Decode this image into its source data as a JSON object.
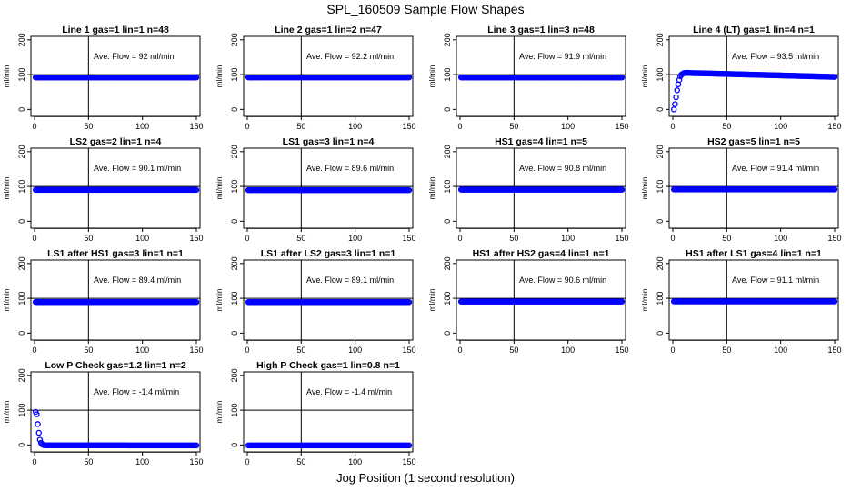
{
  "figure": {
    "title": "SPL_160509  Sample Flow Shapes",
    "xlabel": "Jog Position (1 second resolution)"
  },
  "chart_data": [
    {
      "type": "scatter",
      "title": "Line 1 gas=1 lin=1 n=48",
      "ylabel": "ml/min",
      "annotation": "Ave. Flow =  92  ml/min",
      "xlim": [
        0,
        150
      ],
      "ylim": [
        -20,
        210
      ],
      "xticks": [
        0,
        50,
        100,
        150
      ],
      "yticks": [
        0,
        100,
        200
      ],
      "hlines": [
        100
      ],
      "vlines": [
        50
      ],
      "series": [
        {
          "color": "#0000ff",
          "x": [
            1,
            150
          ],
          "y": [
            92,
            92
          ],
          "shape": "flat"
        }
      ]
    },
    {
      "type": "scatter",
      "title": "Line 2 gas=1 lin=2 n=47",
      "ylabel": "ml/min",
      "annotation": "Ave. Flow =  92.2  ml/min",
      "xlim": [
        0,
        150
      ],
      "ylim": [
        -20,
        210
      ],
      "xticks": [
        0,
        50,
        100,
        150
      ],
      "yticks": [
        0,
        100,
        200
      ],
      "hlines": [
        100
      ],
      "vlines": [
        50
      ],
      "series": [
        {
          "color": "#0000ff",
          "x": [
            1,
            150
          ],
          "y": [
            92.2,
            92.2
          ],
          "shape": "flat"
        }
      ]
    },
    {
      "type": "scatter",
      "title": "Line 3 gas=1 lin=3 n=48",
      "ylabel": "ml/min",
      "annotation": "Ave. Flow =  91.9  ml/min",
      "xlim": [
        0,
        150
      ],
      "ylim": [
        -20,
        210
      ],
      "xticks": [
        0,
        50,
        100,
        150
      ],
      "yticks": [
        0,
        100,
        200
      ],
      "hlines": [
        100
      ],
      "vlines": [
        50
      ],
      "series": [
        {
          "color": "#0000ff",
          "x": [
            1,
            150
          ],
          "y": [
            91.9,
            91.9
          ],
          "shape": "flat"
        }
      ]
    },
    {
      "type": "scatter",
      "title": "Line 4 (LT) gas=1 lin=4 n=1",
      "ylabel": "ml/min",
      "annotation": "Ave. Flow =  93.5  ml/min",
      "xlim": [
        0,
        150
      ],
      "ylim": [
        -20,
        210
      ],
      "xticks": [
        0,
        50,
        100,
        150
      ],
      "yticks": [
        0,
        100,
        200
      ],
      "hlines": [
        100
      ],
      "vlines": [
        50
      ],
      "series": [
        {
          "color": "#0000ff",
          "x": [
            1,
            2,
            3,
            4,
            5,
            6,
            7,
            8,
            10,
            12,
            15,
            20,
            25,
            150
          ],
          "y": [
            0,
            15,
            35,
            55,
            72,
            85,
            95,
            100,
            104,
            105,
            105,
            104,
            104,
            93.5
          ],
          "shape": "rise"
        }
      ]
    },
    {
      "type": "scatter",
      "title": "LS2 gas=2 lin=1 n=4",
      "ylabel": "ml/min",
      "annotation": "Ave. Flow =  90.1  ml/min",
      "xlim": [
        0,
        150
      ],
      "ylim": [
        -20,
        210
      ],
      "xticks": [
        0,
        50,
        100,
        150
      ],
      "yticks": [
        0,
        100,
        200
      ],
      "hlines": [
        100
      ],
      "vlines": [
        50
      ],
      "series": [
        {
          "color": "#0000ff",
          "x": [
            1,
            150
          ],
          "y": [
            90.1,
            90.1
          ],
          "shape": "flat"
        }
      ]
    },
    {
      "type": "scatter",
      "title": "LS1 gas=3 lin=1 n=4",
      "ylabel": "ml/min",
      "annotation": "Ave. Flow =  89.6  ml/min",
      "xlim": [
        0,
        150
      ],
      "ylim": [
        -20,
        210
      ],
      "xticks": [
        0,
        50,
        100,
        150
      ],
      "yticks": [
        0,
        100,
        200
      ],
      "hlines": [
        100
      ],
      "vlines": [
        50
      ],
      "series": [
        {
          "color": "#0000ff",
          "x": [
            1,
            150
          ],
          "y": [
            89.6,
            89.6
          ],
          "shape": "flat"
        }
      ]
    },
    {
      "type": "scatter",
      "title": "HS1 gas=4 lin=1 n=5",
      "ylabel": "ml/min",
      "annotation": "Ave. Flow =  90.8  ml/min",
      "xlim": [
        0,
        150
      ],
      "ylim": [
        -20,
        210
      ],
      "xticks": [
        0,
        50,
        100,
        150
      ],
      "yticks": [
        0,
        100,
        200
      ],
      "hlines": [
        100
      ],
      "vlines": [
        50
      ],
      "series": [
        {
          "color": "#0000ff",
          "x": [
            1,
            150
          ],
          "y": [
            90.8,
            90.8
          ],
          "shape": "flat"
        }
      ]
    },
    {
      "type": "scatter",
      "title": "HS2 gas=5 lin=1 n=5",
      "ylabel": "ml/min",
      "annotation": "Ave. Flow =  91.4  ml/min",
      "xlim": [
        0,
        150
      ],
      "ylim": [
        -20,
        210
      ],
      "xticks": [
        0,
        50,
        100,
        150
      ],
      "yticks": [
        0,
        100,
        200
      ],
      "hlines": [
        100
      ],
      "vlines": [
        50
      ],
      "series": [
        {
          "color": "#0000ff",
          "x": [
            1,
            150
          ],
          "y": [
            91.4,
            91.4
          ],
          "shape": "flat"
        }
      ]
    },
    {
      "type": "scatter",
      "title": "LS1 after HS1 gas=3 lin=1 n=1",
      "ylabel": "ml/min",
      "annotation": "Ave. Flow =  89.4  ml/min",
      "xlim": [
        0,
        150
      ],
      "ylim": [
        -20,
        210
      ],
      "xticks": [
        0,
        50,
        100,
        150
      ],
      "yticks": [
        0,
        100,
        200
      ],
      "hlines": [
        100
      ],
      "vlines": [
        50
      ],
      "series": [
        {
          "color": "#0000ff",
          "x": [
            1,
            150
          ],
          "y": [
            89.4,
            89.4
          ],
          "shape": "flat"
        }
      ]
    },
    {
      "type": "scatter",
      "title": "LS1 after LS2 gas=3 lin=1 n=1",
      "ylabel": "ml/min",
      "annotation": "Ave. Flow =  89.1  ml/min",
      "xlim": [
        0,
        150
      ],
      "ylim": [
        -20,
        210
      ],
      "xticks": [
        0,
        50,
        100,
        150
      ],
      "yticks": [
        0,
        100,
        200
      ],
      "hlines": [
        100
      ],
      "vlines": [
        50
      ],
      "series": [
        {
          "color": "#0000ff",
          "x": [
            1,
            150
          ],
          "y": [
            89.1,
            89.1
          ],
          "shape": "flat"
        }
      ]
    },
    {
      "type": "scatter",
      "title": "HS1 after HS2 gas=4 lin=1 n=1",
      "ylabel": "ml/min",
      "annotation": "Ave. Flow =  90.6  ml/min",
      "xlim": [
        0,
        150
      ],
      "ylim": [
        -20,
        210
      ],
      "xticks": [
        0,
        50,
        100,
        150
      ],
      "yticks": [
        0,
        100,
        200
      ],
      "hlines": [
        100
      ],
      "vlines": [
        50
      ],
      "series": [
        {
          "color": "#0000ff",
          "x": [
            1,
            150
          ],
          "y": [
            90.6,
            90.6
          ],
          "shape": "flat"
        }
      ]
    },
    {
      "type": "scatter",
      "title": "HS1 after LS1 gas=4 lin=1 n=1",
      "ylabel": "ml/min",
      "annotation": "Ave. Flow =  91.1  ml/min",
      "xlim": [
        0,
        150
      ],
      "ylim": [
        -20,
        210
      ],
      "xticks": [
        0,
        50,
        100,
        150
      ],
      "yticks": [
        0,
        100,
        200
      ],
      "hlines": [
        100
      ],
      "vlines": [
        50
      ],
      "series": [
        {
          "color": "#0000ff",
          "x": [
            1,
            150
          ],
          "y": [
            91.1,
            91.1
          ],
          "shape": "flat"
        }
      ]
    },
    {
      "type": "scatter",
      "title": "Low P Check gas=1.2 lin=1 n=2",
      "ylabel": "ml/min",
      "annotation": "Ave. Flow =  -1.4  ml/min",
      "xlim": [
        0,
        150
      ],
      "ylim": [
        -20,
        210
      ],
      "xticks": [
        0,
        50,
        100,
        150
      ],
      "yticks": [
        0,
        100,
        200
      ],
      "hlines": [
        100
      ],
      "vlines": [
        50
      ],
      "series": [
        {
          "color": "#0000ff",
          "x": [
            1,
            2,
            3,
            4,
            5,
            6,
            7,
            8,
            10,
            150
          ],
          "y": [
            95,
            88,
            60,
            35,
            15,
            6,
            2,
            0,
            -1,
            -1.4
          ],
          "shape": "decay"
        }
      ]
    },
    {
      "type": "scatter",
      "title": "High P Check gas=1 lin=0.8 n=1",
      "ylabel": "ml/min",
      "annotation": "Ave. Flow =  -1.4  ml/min",
      "xlim": [
        0,
        150
      ],
      "ylim": [
        -20,
        210
      ],
      "xticks": [
        0,
        50,
        100,
        150
      ],
      "yticks": [
        0,
        100,
        200
      ],
      "hlines": [
        100
      ],
      "vlines": [
        50
      ],
      "series": [
        {
          "color": "#0000ff",
          "x": [
            1,
            150
          ],
          "y": [
            -1.4,
            -1.4
          ],
          "shape": "flat"
        }
      ]
    }
  ]
}
